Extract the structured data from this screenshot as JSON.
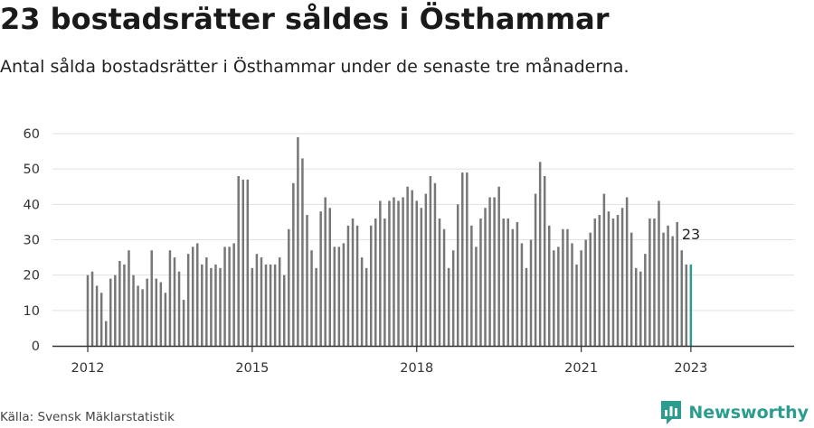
{
  "title": "23 bostadsrätter såldes i Östhammar",
  "subtitle": "Antal sålda bostadsrätter i Östhammar under de senaste tre månaderna.",
  "source": "Källa: Svensk Mäklarstatistik",
  "brand": {
    "name": "Newsworthy",
    "icon": "newsworthy-logo-icon"
  },
  "colors": {
    "bar": "#777777",
    "highlight": "#2a9d8f",
    "grid": "#e1e1e1",
    "axis": "#333333"
  },
  "chart_data": {
    "type": "bar",
    "xlabel": "",
    "ylabel": "",
    "ylim": [
      0,
      60
    ],
    "yticks": [
      "0",
      "10",
      "20",
      "30",
      "40",
      "50",
      "60"
    ],
    "xticks": [
      "2012",
      "2015",
      "2018",
      "2021",
      "2023"
    ],
    "grid": true,
    "annotation": "23",
    "highlight_last": true,
    "values": [
      20,
      21,
      17,
      15,
      7,
      19,
      20,
      24,
      23,
      27,
      20,
      17,
      16,
      19,
      27,
      19,
      18,
      15,
      27,
      25,
      21,
      13,
      26,
      28,
      29,
      23,
      25,
      22,
      23,
      22,
      28,
      28,
      29,
      48,
      47,
      47,
      22,
      26,
      25,
      23,
      23,
      23,
      25,
      20,
      33,
      46,
      59,
      53,
      37,
      27,
      22,
      38,
      42,
      39,
      28,
      28,
      29,
      34,
      36,
      34,
      25,
      22,
      34,
      36,
      41,
      36,
      41,
      42,
      41,
      42,
      45,
      44,
      41,
      39,
      43,
      48,
      46,
      36,
      33,
      22,
      27,
      40,
      49,
      49,
      34,
      28,
      36,
      39,
      42,
      42,
      45,
      36,
      36,
      33,
      35,
      29,
      22,
      30,
      43,
      52,
      48,
      34,
      27,
      28,
      33,
      33,
      29,
      23,
      27,
      30,
      32,
      36,
      37,
      43,
      38,
      36,
      37,
      39,
      42,
      32,
      22,
      21,
      26,
      36,
      36,
      41,
      32,
      34,
      31,
      35,
      27,
      23,
      23
    ]
  }
}
